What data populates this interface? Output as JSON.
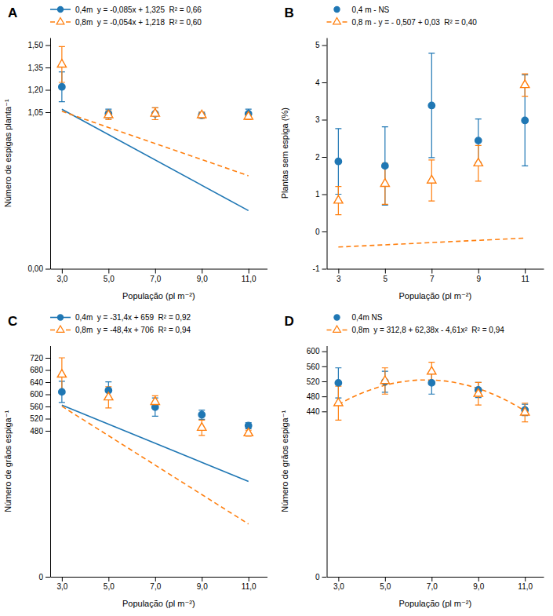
{
  "chart_data": [
    {
      "type": "scatter",
      "title": "A",
      "x_label": "População (pl m⁻²)",
      "y_label": "Número de espigas planta⁻¹",
      "x": [
        3,
        5,
        7,
        9,
        11
      ],
      "xlim": [
        2.5,
        11.8
      ],
      "xticks": [
        {
          "value": 3.0,
          "label": "3,0"
        },
        {
          "value": 5.0,
          "label": "5,0"
        },
        {
          "value": 7.0,
          "label": "7,0"
        },
        {
          "value": 9.0,
          "label": "9,0"
        },
        {
          "value": 11.0,
          "label": "11,0"
        }
      ],
      "ylim": [
        0.0,
        1.55
      ],
      "yticks": [
        {
          "value": 0.0,
          "label": "0,00"
        },
        {
          "value": 1.05,
          "label": "1,05"
        },
        {
          "value": 1.2,
          "label": "1,20"
        },
        {
          "value": 1.35,
          "label": "1,35"
        },
        {
          "value": 1.5,
          "label": "1,50"
        }
      ],
      "legend": "top",
      "series": [
        {
          "name": "0,4m  y = -0,085x + 1,325  R² = 0,66",
          "marker": "circle",
          "line_style": "solid",
          "values": [
            1.22,
            1.04,
            1.04,
            1.03,
            1.04
          ],
          "errors": [
            0.1,
            0.03,
            0.04,
            0.02,
            0.03
          ],
          "fit_x": [
            3,
            11
          ],
          "fit_values": [
            1.07,
            0.39
          ]
        },
        {
          "name": "0,8m  y = -0,054x + 1,218  R² = 0,60",
          "marker": "triangle-open",
          "line_style": "dashed",
          "values": [
            1.37,
            1.03,
            1.04,
            1.03,
            1.02
          ],
          "errors": [
            0.12,
            0.03,
            0.04,
            0.02,
            0.02
          ],
          "fit_x": [
            3,
            11
          ],
          "fit_values": [
            1.056,
            0.624
          ]
        }
      ]
    },
    {
      "type": "scatter",
      "title": "B",
      "x_label": "População (pl m⁻²)",
      "y_label": "Plantas sem espiga (%)",
      "x": [
        3,
        5,
        7,
        9,
        11
      ],
      "xlim": [
        2.5,
        11.8
      ],
      "xticks": [
        3,
        5,
        7,
        9,
        11
      ],
      "ylim": [
        -1,
        5.2
      ],
      "yticks": [
        -1,
        0,
        1,
        2,
        3,
        4,
        5
      ],
      "legend": "top",
      "series": [
        {
          "name": "0,4 m - NS",
          "marker": "circle",
          "line_style": "none",
          "values": [
            1.88,
            1.76,
            3.38,
            2.44,
            2.98
          ],
          "errors": [
            0.88,
            1.05,
            1.4,
            0.58,
            1.22
          ]
        },
        {
          "name": "0,8 m - y = - 0,507 + 0,03  R² = 0,40",
          "marker": "triangle-open",
          "line_style": "dashed",
          "values": [
            0.83,
            1.28,
            1.37,
            1.83,
            3.93
          ],
          "errors": [
            0.38,
            0.55,
            0.55,
            0.48,
            0.3
          ],
          "fit_x": [
            3,
            11
          ],
          "fit_values": [
            -0.417,
            -0.177
          ]
        }
      ]
    },
    {
      "type": "scatter",
      "title": "C",
      "x_label": "População (pl m⁻²)",
      "y_label": "Número de grãos espiga⁻¹",
      "x": [
        3,
        5,
        7,
        9,
        11
      ],
      "xlim": [
        2.5,
        11.8
      ],
      "xticks": [
        {
          "value": 3.0,
          "label": "3,0"
        },
        {
          "value": 5.0,
          "label": "5,0"
        },
        {
          "value": 7.0,
          "label": "7,0"
        },
        {
          "value": 9.0,
          "label": "9,0"
        },
        {
          "value": 11.0,
          "label": "11,0"
        }
      ],
      "ylim": [
        0,
        760
      ],
      "yticks": [
        0,
        480,
        520,
        560,
        600,
        640,
        680,
        720
      ],
      "legend": "top",
      "series": [
        {
          "name": "0,4m  y = -31,4x + 659  R² = 0,92",
          "marker": "circle",
          "line_style": "solid",
          "values": [
            608,
            613,
            558,
            533,
            497
          ],
          "errors": [
            35,
            28,
            30,
            15,
            10
          ],
          "fit_x": [
            3,
            11
          ],
          "fit_values": [
            564.8,
            313.6
          ]
        },
        {
          "name": "0,8m  y = -48,4x + 706  R² = 0,94",
          "marker": "triangle-open",
          "line_style": "dashed",
          "values": [
            665,
            590,
            575,
            490,
            472
          ],
          "errors": [
            55,
            35,
            20,
            25,
            10
          ],
          "fit_x": [
            3,
            11
          ],
          "fit_values": [
            560.8,
            173.6
          ]
        }
      ]
    },
    {
      "type": "scatter",
      "title": "D",
      "x_label": "População (pl m⁻²)",
      "y_label": "Número de grãos espiga⁻¹",
      "x": [
        3,
        5,
        7,
        9,
        11
      ],
      "xlim": [
        2.5,
        11.8
      ],
      "xticks": [
        {
          "value": 3,
          "label": "3,0"
        },
        {
          "value": 5,
          "label": "5,0"
        },
        {
          "value": 7,
          "label": "7,0"
        },
        {
          "value": 9,
          "label": "9,0"
        },
        {
          "value": 11,
          "label": "11,0"
        }
      ],
      "ylim": [
        0,
        615
      ],
      "yticks": [
        0,
        440,
        480,
        520,
        560,
        600
      ],
      "legend": "top",
      "series": [
        {
          "name": "0,4m NS",
          "marker": "circle",
          "line_style": "none",
          "values": [
            516,
            519,
            516,
            497,
            444
          ],
          "errors": [
            40,
            28,
            30,
            20,
            15
          ]
        },
        {
          "name": "0,8m  y = 312,8 + 62,38x - 4,61x²  R² = 0,94",
          "marker": "triangle-open",
          "line_style": "dashed",
          "values": [
            462,
            521,
            546,
            487,
            437
          ],
          "errors": [
            45,
            35,
            25,
            30,
            25
          ],
          "fit_x": [
            3,
            3.5,
            4,
            4.5,
            5,
            5.5,
            6,
            6.5,
            7,
            7.5,
            8,
            8.5,
            9,
            9.5,
            10,
            10.5,
            11
          ],
          "fit_values": [
            458.45,
            474.6575,
            488.56,
            500.1575,
            509.45,
            516.4375,
            521.12,
            523.4975,
            523.57,
            521.3375,
            516.8,
            509.9575,
            500.81,
            489.3575,
            475.6,
            459.5375,
            441.17
          ]
        }
      ]
    }
  ]
}
